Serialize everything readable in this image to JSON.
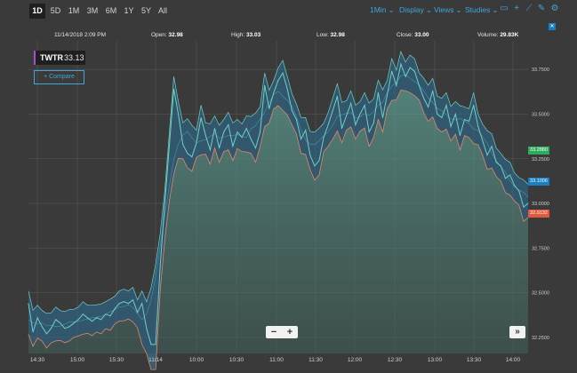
{
  "toolbar": {
    "ranges": [
      "1D",
      "5D",
      "1M",
      "3M",
      "6M",
      "1Y",
      "5Y",
      "All"
    ],
    "active_range": "1D",
    "menus": [
      "1Min",
      "Display",
      "Views",
      "Studies"
    ],
    "icons": [
      "comment-icon",
      "add-icon",
      "draw-icon",
      "pencil-icon",
      "settings-icon"
    ],
    "accent_color": "#3fa7d6"
  },
  "info": {
    "datetime": "11/14/2018 2:09 PM",
    "open_label": "Open:",
    "open": "32.98",
    "high_label": "High:",
    "high": "33.03",
    "low_label": "Low:",
    "low": "32.98",
    "close_label": "Close:",
    "close": "33.00",
    "volume_label": "Volume:",
    "volume": "29.83K"
  },
  "symbol": {
    "ticker": "TWTR",
    "price": "33.13",
    "compare_label": "+ Compare"
  },
  "price_tags": [
    {
      "value": "33.2880",
      "color": "#2eab5c"
    },
    {
      "value": "33.1006",
      "color": "#1a7fc1"
    },
    {
      "value": "32.9132",
      "color": "#e2573d"
    }
  ],
  "zoom": {
    "minus": "−",
    "plus": "+",
    "forward": "»"
  },
  "chart_data": {
    "type": "area",
    "title": "",
    "xlabel": "",
    "ylabel": "",
    "x_ticks": [
      "14:30",
      "15:00",
      "15:30",
      "11/14",
      "10:00",
      "10:30",
      "11:00",
      "11:30",
      "12:00",
      "12:30",
      "13:00",
      "13:30",
      "14:00"
    ],
    "y_ticks": [
      "33.7500",
      "33.5000",
      "33.2500",
      "33.0000",
      "32.7500",
      "32.5000",
      "32.2500"
    ],
    "ylim": [
      32.16,
      33.91
    ],
    "grid": true,
    "series": [
      {
        "values": [
          32.44,
          32.28,
          32.36,
          32.31,
          32.27,
          32.3,
          32.35,
          32.33,
          32.3,
          32.31,
          32.33,
          32.35,
          32.38,
          32.36,
          32.34,
          32.36,
          32.35,
          32.38,
          32.37,
          32.41,
          32.44,
          32.45,
          32.44,
          32.46,
          32.39,
          32.44,
          32.3,
          32.21,
          32.21,
          32.65,
          33.0,
          33.32,
          33.64,
          33.5,
          33.33,
          33.28,
          33.26,
          33.34,
          33.48,
          33.38,
          33.3,
          33.42,
          33.31,
          33.4,
          33.44,
          33.32,
          33.4,
          33.37,
          33.42,
          33.36,
          33.31,
          33.4,
          33.66,
          33.53,
          33.62,
          33.69,
          33.73,
          33.64,
          33.52,
          33.47,
          33.36,
          33.41,
          33.27,
          33.21,
          33.24,
          33.37,
          33.44,
          33.52,
          33.6,
          33.42,
          33.49,
          33.56,
          33.44,
          33.5,
          33.55,
          33.4,
          33.45,
          33.62,
          33.48,
          33.61,
          33.74,
          33.66,
          33.78,
          33.71,
          33.76,
          33.74,
          33.66,
          33.59,
          33.54,
          33.63,
          33.5,
          33.48,
          33.55,
          33.43,
          33.5,
          33.38,
          33.47,
          33.46,
          33.55,
          33.43,
          33.35,
          33.27,
          33.32,
          33.23,
          33.21,
          33.14,
          33.16,
          33.1,
          33.07,
          32.98,
          33.0
        ]
      }
    ],
    "colors": {
      "line": "#6fd0c4",
      "upper_band": "#1e8fc1",
      "lower_band": "#e58668",
      "fill": "#5a9a8e"
    }
  }
}
